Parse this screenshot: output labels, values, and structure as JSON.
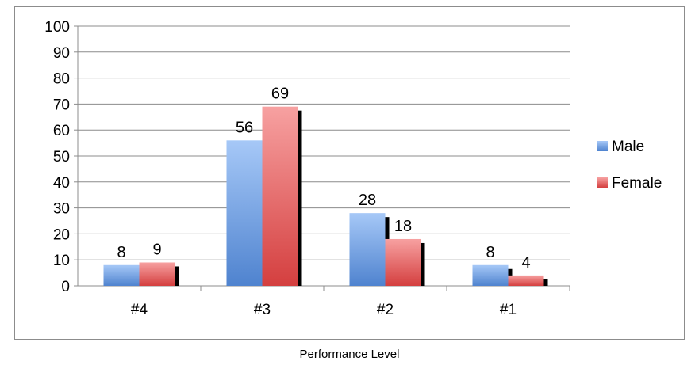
{
  "chart_data": {
    "type": "bar",
    "categories": [
      "#4",
      "#3",
      "#2",
      "#1"
    ],
    "series": [
      {
        "name": "Male",
        "values": [
          8,
          56,
          28,
          8
        ],
        "color": "#5b8fd6"
      },
      {
        "name": "Female",
        "values": [
          9,
          69,
          18,
          4
        ],
        "color": "#e06666"
      }
    ],
    "xlabel": "Performance Level",
    "ylabel": "",
    "ylim": [
      0,
      100
    ],
    "yticks": [
      0,
      10,
      20,
      30,
      40,
      50,
      60,
      70,
      80,
      90,
      100
    ],
    "grid": true,
    "legend": "right"
  }
}
